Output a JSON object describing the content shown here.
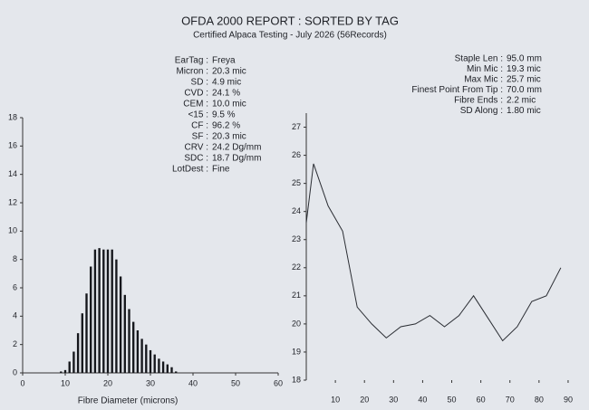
{
  "header": {
    "title": "OFDA 2000 REPORT : SORTED BY TAG",
    "subtitle": "Certified Alpaca Testing - July 2026 (56Records)"
  },
  "stats_left": [
    {
      "label": "EarTag :",
      "value": "Freya"
    },
    {
      "label": "Micron :",
      "value": "20.3 mic"
    },
    {
      "label": "SD :",
      "value": "4.9 mic"
    },
    {
      "label": "CVD :",
      "value": "24.1 %"
    },
    {
      "label": "CEM :",
      "value": "10.0 mic"
    },
    {
      "label": "<15 :",
      "value": "9.5 %"
    },
    {
      "label": "CF :",
      "value": "96.2 %"
    },
    {
      "label": "SF :",
      "value": "20.3 mic"
    },
    {
      "label": "CRV :",
      "value": "24.2 Dg/mm"
    },
    {
      "label": "SDC :",
      "value": "18.7 Dg/mm"
    },
    {
      "label": "LotDest :",
      "value": "Fine"
    }
  ],
  "stats_right": [
    {
      "label": "Staple Len :",
      "value": "95.0 mm"
    },
    {
      "label": "Min Mic :",
      "value": "19.3 mic"
    },
    {
      "label": "Max Mic :",
      "value": "25.7 mic"
    },
    {
      "label": "Finest Point From Tip :",
      "value": "70.0 mm"
    },
    {
      "label": "Fibre Ends :",
      "value": "2.2 mic"
    },
    {
      "label": "SD Along :",
      "value": "1.80 mic"
    }
  ],
  "chart_data": [
    {
      "type": "bar",
      "xlabel": "Fibre Diameter (microns)",
      "color": "#15171c",
      "x": [
        9,
        10,
        11,
        12,
        13,
        14,
        15,
        16,
        17,
        18,
        19,
        20,
        21,
        22,
        23,
        24,
        25,
        26,
        27,
        28,
        29,
        30,
        31,
        32,
        33,
        34,
        35,
        36
      ],
      "values": [
        0.1,
        0.2,
        0.8,
        1.5,
        2.8,
        4.2,
        5.6,
        7.5,
        8.7,
        8.8,
        8.7,
        8.7,
        8.7,
        8.0,
        6.8,
        5.5,
        4.5,
        3.6,
        3.0,
        2.4,
        2.0,
        1.6,
        1.3,
        1.0,
        0.8,
        0.6,
        0.4,
        0.1
      ],
      "xlim": [
        0,
        60
      ],
      "xticks": [
        0,
        10,
        20,
        30,
        40,
        50,
        60
      ],
      "ylim": [
        0,
        18
      ],
      "yticks": [
        0,
        2,
        4,
        6,
        8,
        10,
        12,
        14,
        16,
        18
      ]
    },
    {
      "type": "line",
      "color": "#2a2d33",
      "x": [
        0,
        2.5,
        7.5,
        12.5,
        17.5,
        22.5,
        27.5,
        32.5,
        37.5,
        42.5,
        47.5,
        52.5,
        57.5,
        62.5,
        67.5,
        72.5,
        77.5,
        82.5,
        87.5
      ],
      "values": [
        23.6,
        25.7,
        24.2,
        23.3,
        20.6,
        20.0,
        19.5,
        19.9,
        20.0,
        20.3,
        19.9,
        20.3,
        21.0,
        20.2,
        19.4,
        19.9,
        20.8,
        21.0,
        22.0
      ],
      "xlim": [
        0,
        95
      ],
      "xticks": [
        10,
        20,
        30,
        40,
        50,
        60,
        70,
        80,
        90
      ],
      "ylim": [
        18,
        27.5
      ],
      "yticks": [
        18,
        19,
        20,
        21,
        22,
        23,
        24,
        25,
        26,
        27
      ]
    }
  ]
}
